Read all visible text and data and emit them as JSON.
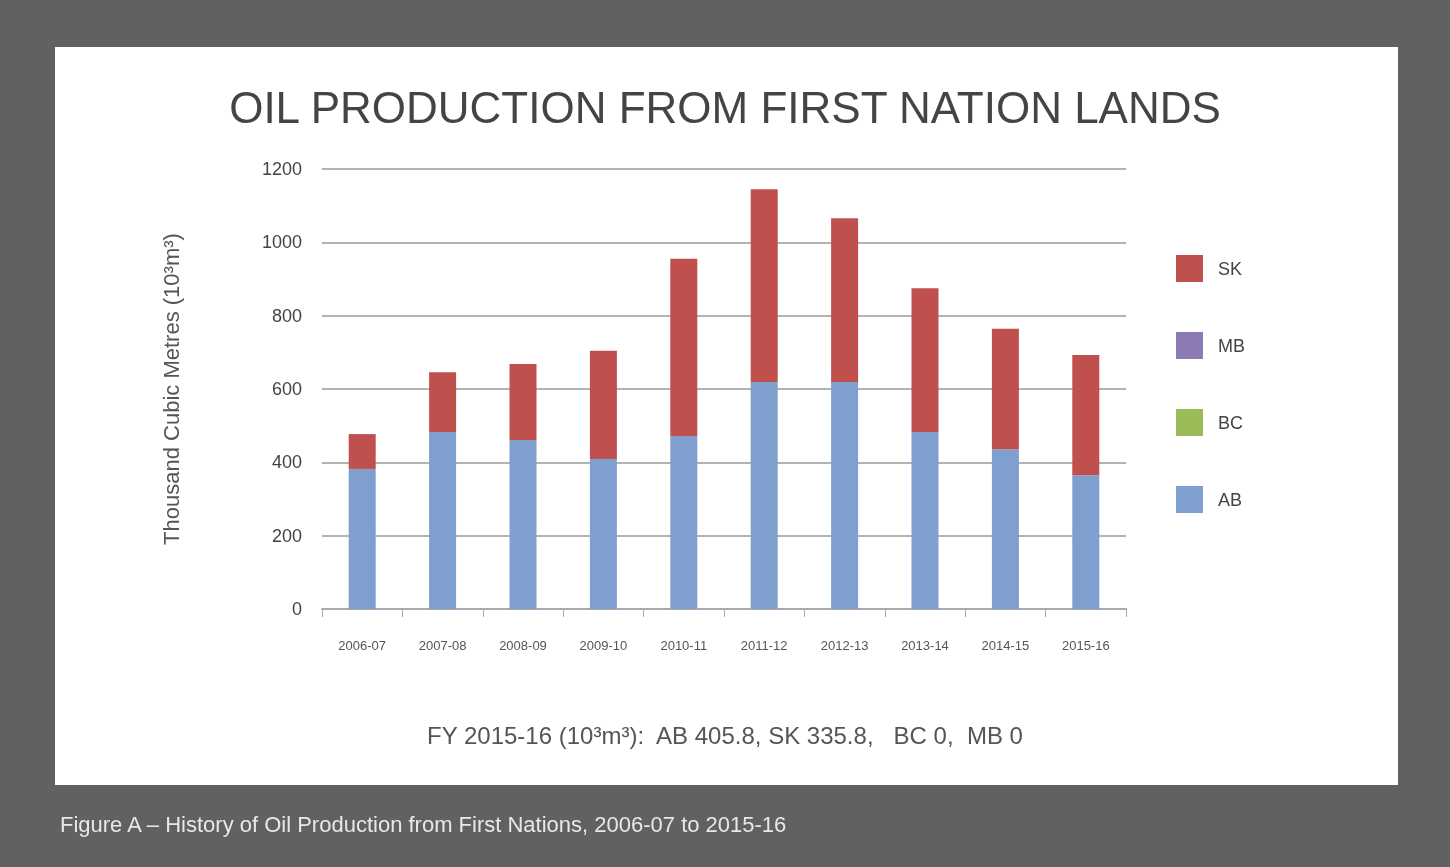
{
  "chart_data": {
    "type": "bar",
    "title": "OIL PRODUCTION FROM FIRST NATION LANDS",
    "ylabel": "Thousand Cubic Metres (10³m³)",
    "categories": [
      "2006-07",
      "2007-08",
      "2008-09",
      "2009-10",
      "2010-11",
      "2011-12",
      "2012-13",
      "2013-14",
      "2014-15",
      "2015-16"
    ],
    "stacked": true,
    "series": [
      {
        "name": "AB",
        "color": "#7f9fce",
        "values": [
          382,
          483,
          461,
          409,
          472,
          619,
          619,
          483,
          436,
          365
        ]
      },
      {
        "name": "BC",
        "color": "#9bbb59",
        "values": [
          0,
          0,
          0,
          0,
          0,
          0,
          0,
          0,
          0,
          0
        ]
      },
      {
        "name": "MB",
        "color": "#8c7ab5",
        "values": [
          0,
          0,
          0,
          0,
          0,
          0,
          0,
          0,
          0,
          0
        ]
      },
      {
        "name": "SK",
        "color": "#c0504d",
        "values": [
          95,
          163,
          207,
          295,
          483,
          526,
          447,
          392,
          328,
          328
        ]
      }
    ],
    "ylim": [
      0,
      1200
    ],
    "yticks": [
      0,
      200,
      400,
      600,
      800,
      1000,
      1200
    ],
    "grid": "y",
    "legend": "right",
    "annotations": [
      "FY 2015-16 (10³m³):  AB 405.8, SK 335.8,   BC 0,  MB 0",
      "Figure A – History of Oil Production from First Nations, 2006-07 to 2015-16"
    ]
  }
}
